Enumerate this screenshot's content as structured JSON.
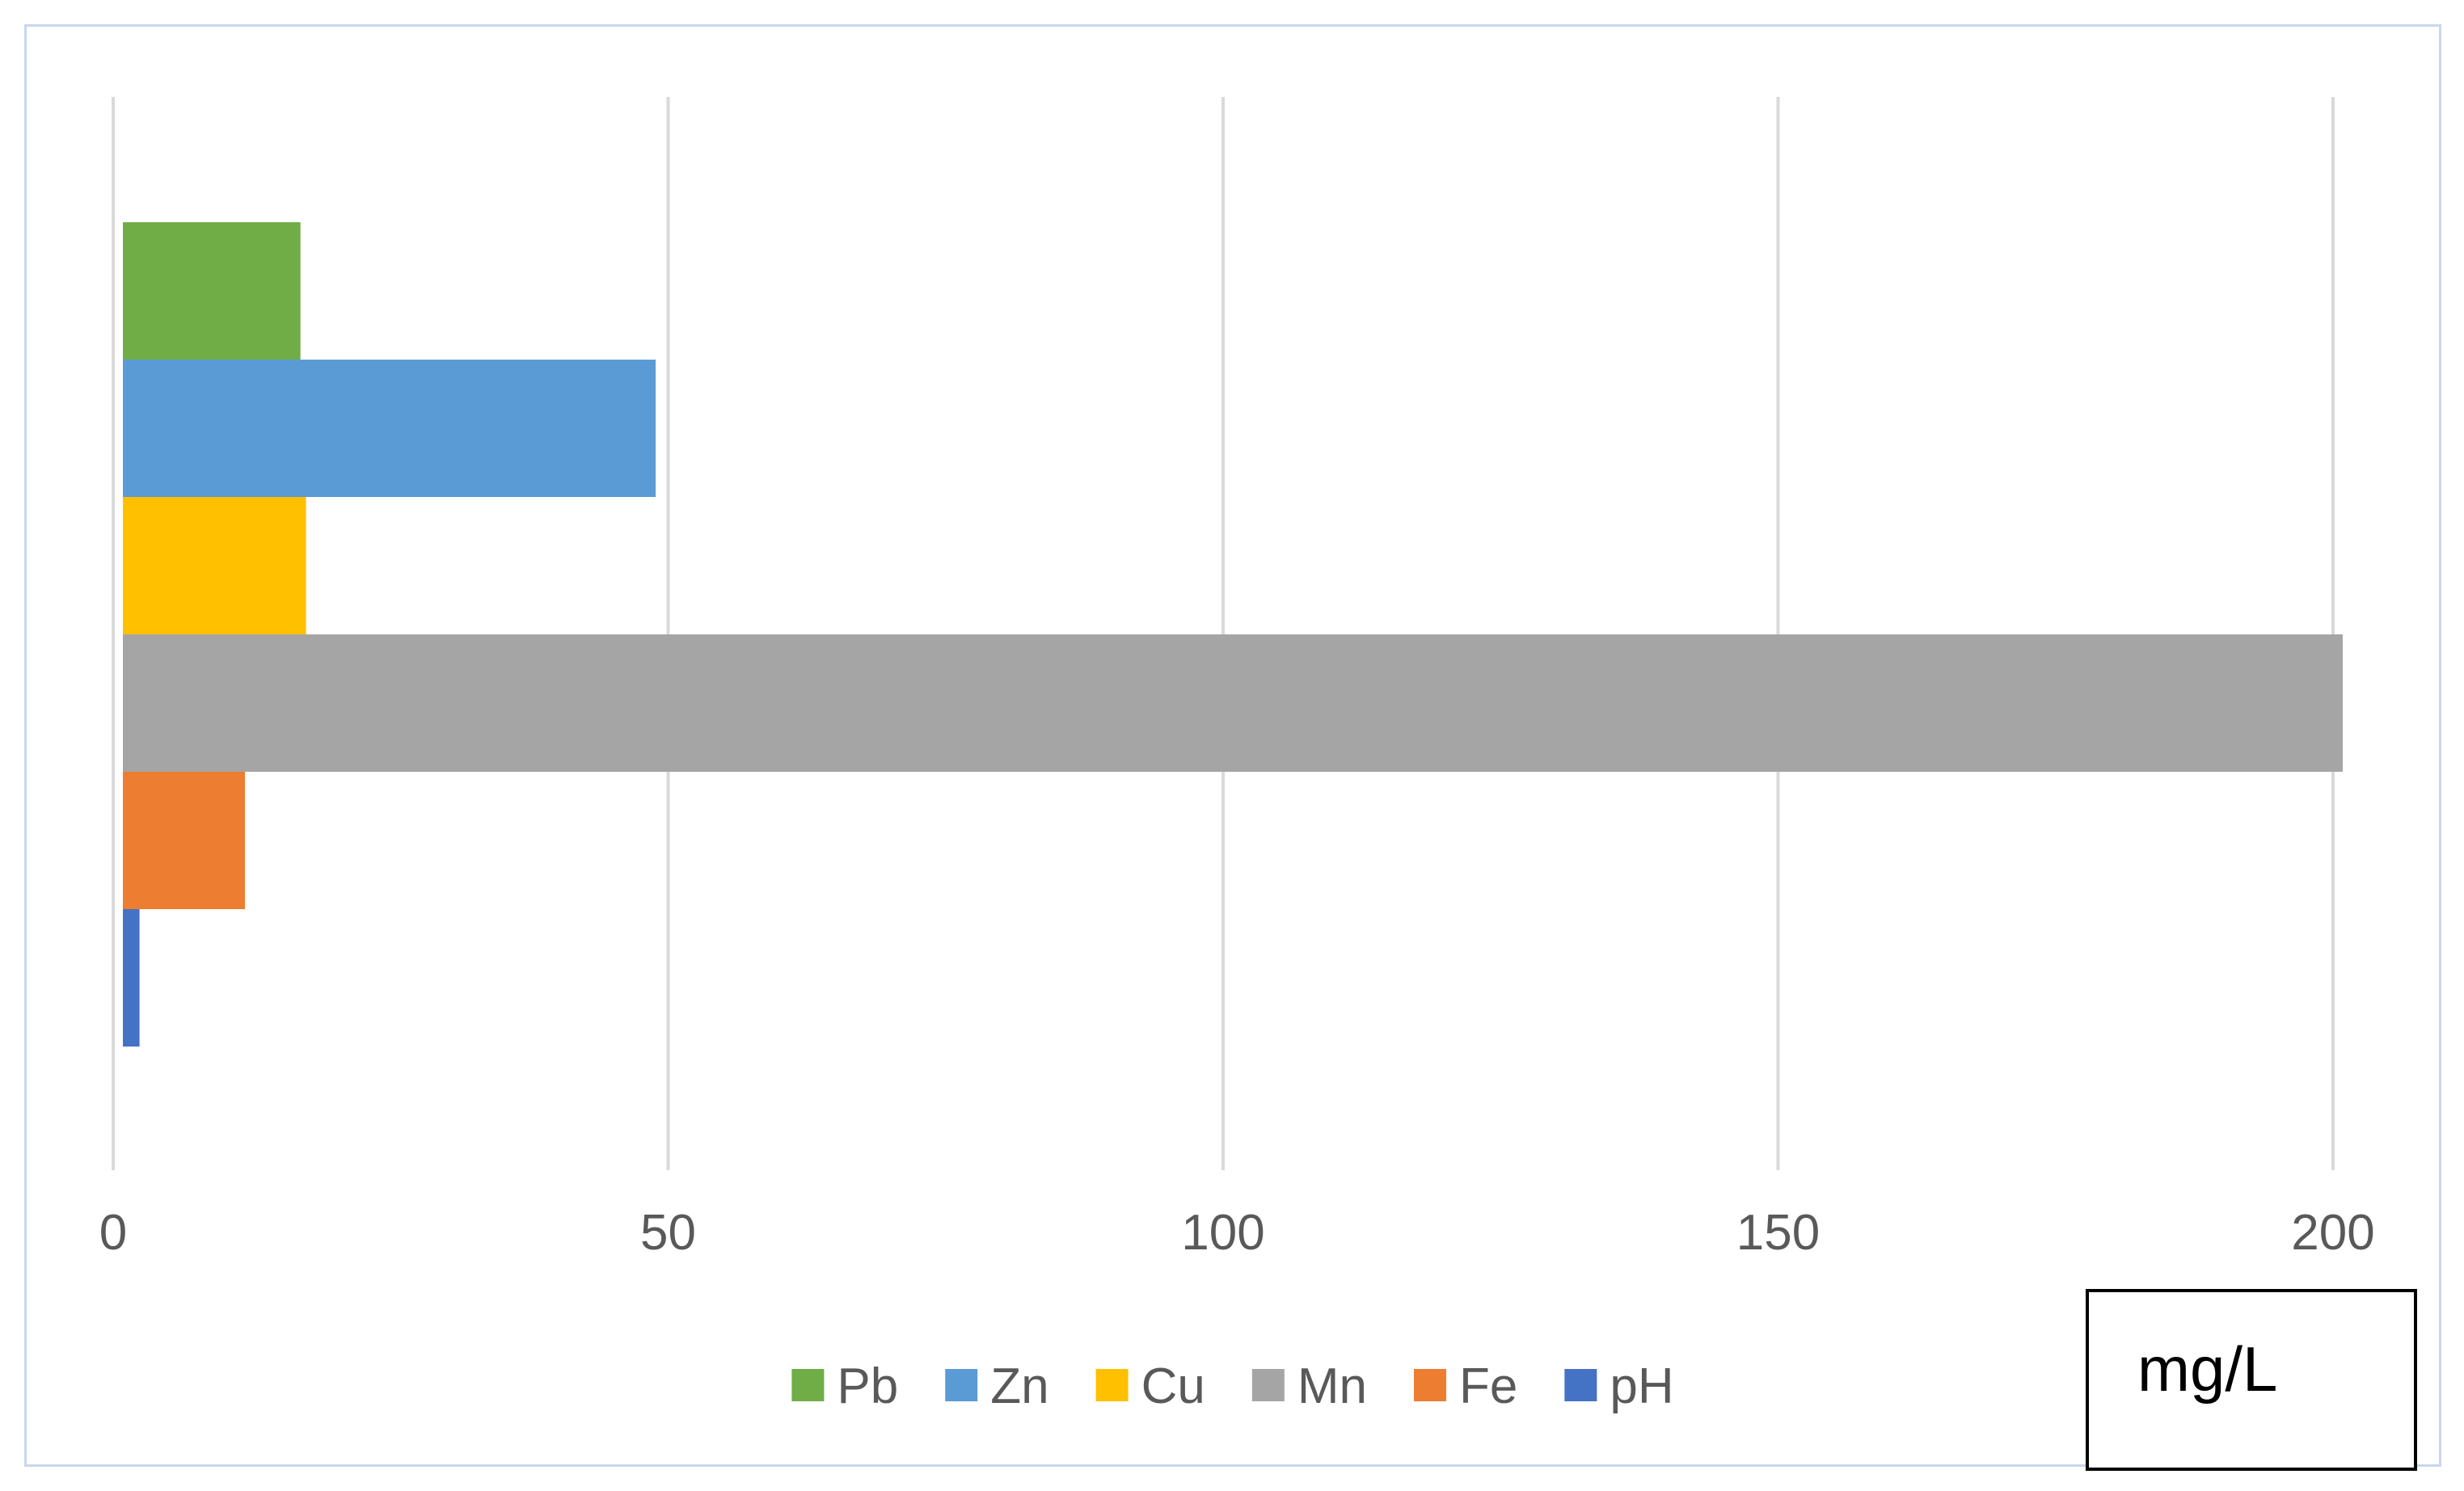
{
  "chart_data": {
    "type": "bar",
    "orientation": "horizontal",
    "categories": [
      "Pb",
      "Zn",
      "Cu",
      "Mn",
      "Fe",
      "pH"
    ],
    "values": [
      16,
      48,
      16.5,
      200,
      11,
      1.5
    ],
    "colors": [
      "#70ad47",
      "#5b9bd5",
      "#ffc000",
      "#a5a5a5",
      "#ed7d31",
      "#4472c4"
    ],
    "xlim": [
      0,
      200
    ],
    "xticks": [
      0,
      50,
      100,
      150,
      200
    ],
    "xtick_labels": [
      "0",
      "50",
      "100",
      "150",
      "200"
    ],
    "grid": true,
    "legend": {
      "position": "bottom",
      "entries": [
        "Pb",
        "Zn",
        "Cu",
        "Mn",
        "Fe",
        "pH"
      ]
    },
    "unit_label": "mg/L"
  }
}
